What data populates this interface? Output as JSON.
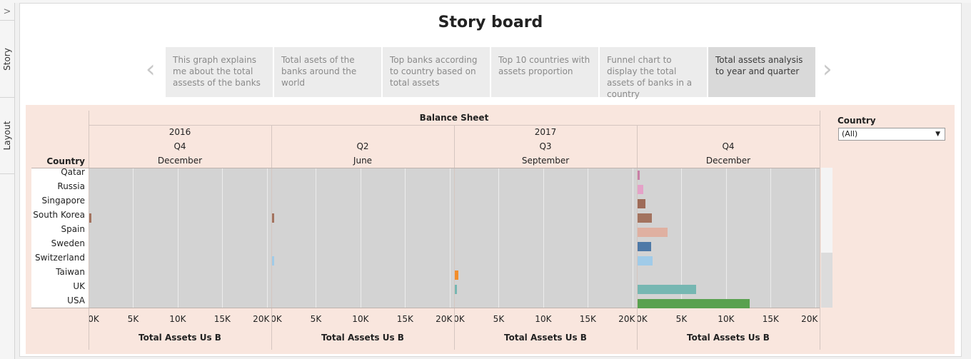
{
  "rail": {
    "toggle": ">",
    "story_tab": "Story",
    "layout_tab": "Layout"
  },
  "title": "Story board",
  "nav": {
    "prev": "‹",
    "next": "›"
  },
  "story_points": [
    {
      "label": "This graph explains me about the total assests of the banks",
      "active": false
    },
    {
      "label": "Total asets of the banks around the world",
      "active": false
    },
    {
      "label": "Top banks according to country based on total assets",
      "active": false
    },
    {
      "label": "Top 10 countries with assets proportion",
      "active": false
    },
    {
      "label": "Funnel chart to display the total assets of banks in a country",
      "active": false
    },
    {
      "label": "Total assets analysis to year and quarter",
      "active": true
    }
  ],
  "viz": {
    "sheet_title": "Balance Sheet",
    "row_header": "Country",
    "years": [
      "2016",
      "2017"
    ],
    "panes": [
      {
        "quarter": "Q4",
        "month": "December",
        "axis_title": "Total Assets Us B"
      },
      {
        "quarter": "Q2",
        "month": "June",
        "axis_title": "Total Assets Us B"
      },
      {
        "quarter": "Q3",
        "month": "September",
        "axis_title": "Total Assets Us B"
      },
      {
        "quarter": "Q4",
        "month": "December",
        "axis_title": "Total Assets Us B"
      }
    ],
    "tick_labels": [
      "0K",
      "5K",
      "10K",
      "15K",
      "20K"
    ]
  },
  "filter": {
    "label": "Country",
    "selected": "(All)"
  },
  "chart_data": {
    "type": "bar",
    "orientation": "horizontal",
    "title": "Balance Sheet",
    "xlabel": "Total Assets Us B",
    "ylabel": "Country",
    "xlim": [
      0,
      20500
    ],
    "categories": [
      "Qatar",
      "Russia",
      "Singapore",
      "South Korea",
      "Spain",
      "Sweden",
      "Switzerland",
      "Taiwan",
      "UK",
      "USA"
    ],
    "colors": [
      "#c77fa6",
      "#e4a2c8",
      "#9e6b58",
      "#a3735f",
      "#dfb0a1",
      "#4e79a7",
      "#a0cbe8",
      "#f28e2b",
      "#76b7b2",
      "#59a14f"
    ],
    "series": [
      {
        "name": "2016 Q4 December",
        "values": [
          0,
          0,
          0,
          250,
          0,
          0,
          0,
          0,
          0,
          0
        ]
      },
      {
        "name": "2017 Q2 June",
        "values": [
          0,
          0,
          0,
          250,
          0,
          0,
          120,
          0,
          0,
          0
        ]
      },
      {
        "name": "2017 Q3 September",
        "values": [
          0,
          0,
          0,
          0,
          0,
          0,
          0,
          400,
          280,
          0
        ]
      },
      {
        "name": "2017 Q4 December",
        "values": [
          200,
          650,
          900,
          1600,
          3400,
          1550,
          1650,
          0,
          6600,
          12600
        ]
      }
    ],
    "grid": true
  }
}
